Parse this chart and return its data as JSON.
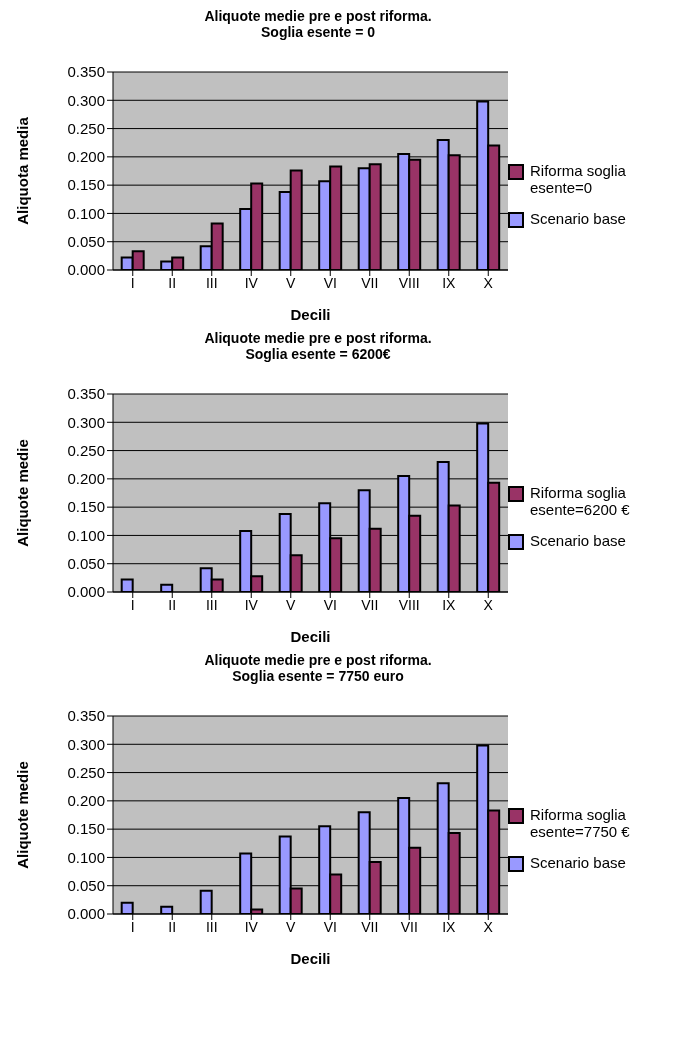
{
  "chart_data": [
    {
      "type": "bar",
      "title": "Aliquote medie pre e post riforma.\nSoglia esente = 0",
      "xlabel": "Decili",
      "ylabel": "Aliquota media",
      "categories": [
        "I",
        "II",
        "III",
        "IV",
        "V",
        "VI",
        "VII",
        "VIII",
        "IX",
        "X"
      ],
      "series": [
        {
          "name": "Scenario base",
          "color": "#9999ff",
          "values": [
            0.022,
            0.015,
            0.042,
            0.108,
            0.138,
            0.157,
            0.18,
            0.205,
            0.23,
            0.298
          ]
        },
        {
          "name": "Riforma soglia esente=0",
          "color": "#993366",
          "values": [
            0.033,
            0.022,
            0.082,
            0.153,
            0.176,
            0.183,
            0.187,
            0.195,
            0.203,
            0.22
          ]
        }
      ],
      "ylim": [
        0,
        0.35
      ],
      "yticks": [
        {
          "value": 0,
          "label": "0.000"
        },
        {
          "value": 0.05,
          "label": "0.050"
        },
        {
          "value": 0.1,
          "label": "0.100"
        },
        {
          "value": 0.15,
          "label": "0.150"
        },
        {
          "value": 0.2,
          "label": "0.200"
        },
        {
          "value": 0.25,
          "label": "0.250"
        },
        {
          "value": 0.3,
          "label": "0.300"
        },
        {
          "value": 0.35,
          "label": "0.350"
        }
      ],
      "grid": "y",
      "legend": "right"
    },
    {
      "type": "bar",
      "title": "Aliquote medie pre e post riforma.\nSoglia esente = 6200€",
      "xlabel": "Decili",
      "ylabel": "Aliquote medie",
      "categories": [
        "I",
        "II",
        "III",
        "IV",
        "V",
        "VI",
        "VII",
        "VIII",
        "IX",
        "X"
      ],
      "series": [
        {
          "name": "Scenario base",
          "color": "#9999ff",
          "values": [
            0.022,
            0.013,
            0.042,
            0.108,
            0.138,
            0.157,
            0.18,
            0.205,
            0.23,
            0.298
          ]
        },
        {
          "name": "Riforma soglia esente=6200 €",
          "color": "#993366",
          "values": [
            0,
            0,
            0.022,
            0.028,
            0.065,
            0.095,
            0.112,
            0.135,
            0.153,
            0.193
          ]
        }
      ],
      "ylim": [
        0,
        0.35
      ],
      "yticks": [
        {
          "value": 0,
          "label": "0.000"
        },
        {
          "value": 0.05,
          "label": "0.050"
        },
        {
          "value": 0.1,
          "label": "0.100"
        },
        {
          "value": 0.15,
          "label": "0.150"
        },
        {
          "value": 0.2,
          "label": "0.200"
        },
        {
          "value": 0.25,
          "label": "0.250"
        },
        {
          "value": 0.3,
          "label": "0.300"
        },
        {
          "value": 0.35,
          "label": "0.350"
        }
      ],
      "grid": "y",
      "legend": "right"
    },
    {
      "type": "bar",
      "title": "Aliquote medie pre e post riforma.\nSoglia esente = 7750 euro",
      "xlabel": "Decili",
      "ylabel": "Aliquote medie",
      "categories": [
        "I",
        "II",
        "III",
        "IV",
        "V",
        "VI",
        "VII",
        "VII",
        "IX",
        "X"
      ],
      "series": [
        {
          "name": "Scenario base",
          "color": "#9999ff",
          "values": [
            0.02,
            0.013,
            0.041,
            0.107,
            0.137,
            0.155,
            0.18,
            0.205,
            0.231,
            0.298
          ]
        },
        {
          "name": "Riforma soglia esente=7750 €",
          "color": "#993366",
          "values": [
            0,
            0,
            0,
            0.008,
            0.045,
            0.07,
            0.092,
            0.117,
            0.143,
            0.183
          ]
        }
      ],
      "ylim": [
        0,
        0.35
      ],
      "yticks": [
        {
          "value": 0,
          "label": "0.000"
        },
        {
          "value": 0.05,
          "label": "0.050"
        },
        {
          "value": 0.1,
          "label": "0.100"
        },
        {
          "value": 0.15,
          "label": "0.150"
        },
        {
          "value": 0.2,
          "label": "0.200"
        },
        {
          "value": 0.25,
          "label": "0.250"
        },
        {
          "value": 0.3,
          "label": "0.300"
        },
        {
          "value": 0.35,
          "label": "0.350"
        }
      ],
      "grid": "y",
      "legend": "right"
    }
  ]
}
